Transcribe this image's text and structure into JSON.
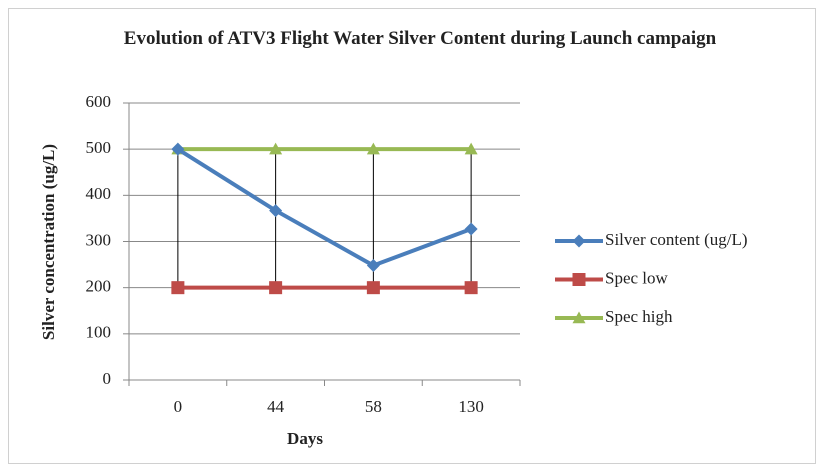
{
  "chart_data": {
    "type": "line",
    "title": "Evolution of ATV3 Flight Water Silver Content during  Launch campaign",
    "x_label": "Days",
    "y_label": "Silver concentration (ug/L)",
    "categories": [
      "0",
      "44",
      "58",
      "130"
    ],
    "series": [
      {
        "name": "Silver content (ug/L)",
        "color": "#4a7ebb",
        "marker": "diamond",
        "values": [
          500,
          367,
          248,
          327
        ]
      },
      {
        "name": "Spec low",
        "color": "#be4b48",
        "marker": "square",
        "values": [
          200,
          200,
          200,
          200
        ]
      },
      {
        "name": "Spec high",
        "color": "#98b954",
        "marker": "triangle",
        "values": [
          500,
          500,
          500,
          500
        ]
      }
    ],
    "ylim": [
      0,
      600
    ],
    "yticks": [
      0,
      100,
      200,
      300,
      400,
      500,
      600
    ],
    "grid": true,
    "legend": "right"
  }
}
